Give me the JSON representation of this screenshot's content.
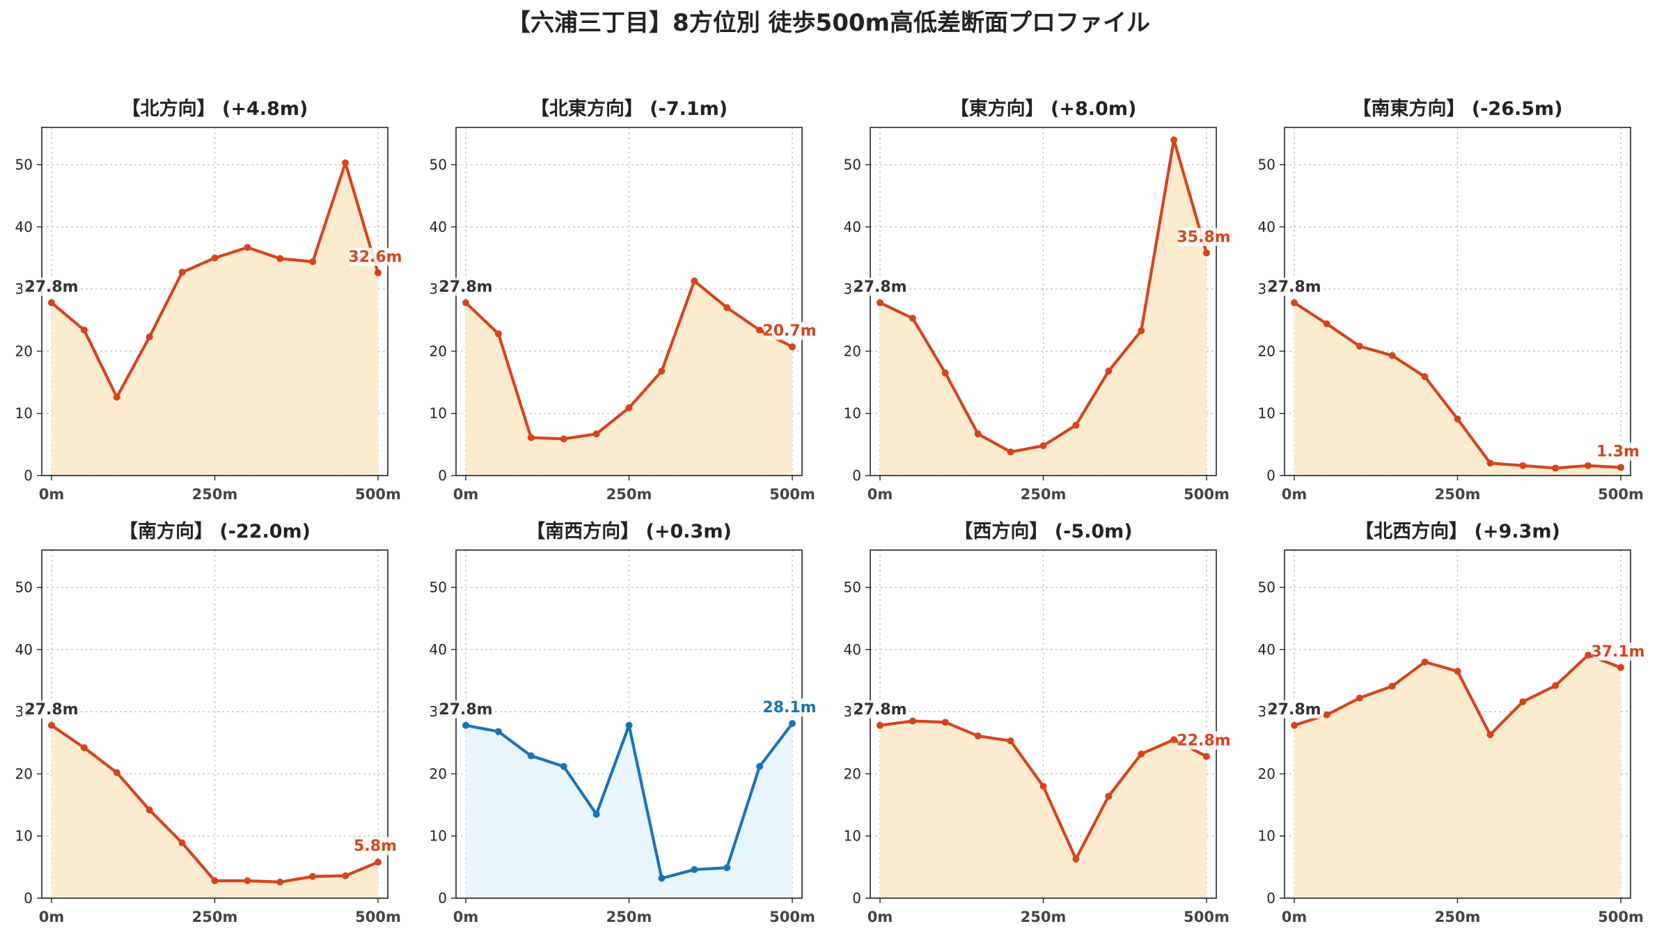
{
  "title": "【六浦三丁目】8方位別 徒歩500m高低差断面プロファイル",
  "colors": {
    "line_default": "#d5441c",
    "fill_default": "#fdebd0",
    "line_highlight": "#1a73b5",
    "fill_highlight": "#e8f5fb",
    "start_label": "#333333"
  },
  "chart_data": [
    {
      "type": "area",
      "title": "【北方向】 (+4.8m)",
      "highlight": false,
      "x": [
        0,
        50,
        100,
        150,
        200,
        250,
        300,
        350,
        400,
        450,
        500
      ],
      "values": [
        27.8,
        23.4,
        12.6,
        22.3,
        32.7,
        35.0,
        36.7,
        34.9,
        34.4,
        50.3,
        32.6
      ],
      "start_label": "27.8m",
      "end_label": "32.6m",
      "xticks": [
        "0m",
        "250m",
        "500m"
      ],
      "yticks": [
        "0",
        "10",
        "20",
        "30",
        "40",
        "50"
      ],
      "ylim": [
        0,
        56
      ],
      "grid": true
    },
    {
      "type": "area",
      "title": "【北東方向】 (-7.1m)",
      "highlight": false,
      "x": [
        0,
        50,
        100,
        150,
        200,
        250,
        300,
        350,
        400,
        450,
        500
      ],
      "values": [
        27.8,
        22.8,
        6.1,
        5.9,
        6.7,
        10.9,
        16.8,
        31.3,
        27.0,
        23.4,
        20.7
      ],
      "start_label": "27.8m",
      "end_label": "20.7m",
      "xticks": [
        "0m",
        "250m",
        "500m"
      ],
      "yticks": [
        "0",
        "10",
        "20",
        "30",
        "40",
        "50"
      ],
      "ylim": [
        0,
        56
      ],
      "grid": true
    },
    {
      "type": "area",
      "title": "【東方向】 (+8.0m)",
      "highlight": false,
      "x": [
        0,
        50,
        100,
        150,
        200,
        250,
        300,
        350,
        400,
        450,
        500
      ],
      "values": [
        27.8,
        25.3,
        16.5,
        6.7,
        3.8,
        4.8,
        8.1,
        16.8,
        23.3,
        54.0,
        35.8
      ],
      "start_label": "27.8m",
      "end_label": "35.8m",
      "xticks": [
        "0m",
        "250m",
        "500m"
      ],
      "yticks": [
        "0",
        "10",
        "20",
        "30",
        "40",
        "50"
      ],
      "ylim": [
        0,
        56
      ],
      "grid": true
    },
    {
      "type": "area",
      "title": "【南東方向】 (-26.5m)",
      "highlight": false,
      "x": [
        0,
        50,
        100,
        150,
        200,
        250,
        300,
        350,
        400,
        450,
        500
      ],
      "values": [
        27.8,
        24.4,
        20.8,
        19.3,
        15.9,
        9.1,
        2.0,
        1.6,
        1.2,
        1.6,
        1.3
      ],
      "start_label": "27.8m",
      "end_label": "1.3m",
      "xticks": [
        "0m",
        "250m",
        "500m"
      ],
      "yticks": [
        "0",
        "10",
        "20",
        "30",
        "40",
        "50"
      ],
      "ylim": [
        0,
        56
      ],
      "grid": true
    },
    {
      "type": "area",
      "title": "【南方向】 (-22.0m)",
      "highlight": false,
      "x": [
        0,
        50,
        100,
        150,
        200,
        250,
        300,
        350,
        400,
        450,
        500
      ],
      "values": [
        27.8,
        24.2,
        20.2,
        14.2,
        8.9,
        2.8,
        2.8,
        2.6,
        3.5,
        3.6,
        5.8
      ],
      "start_label": "27.8m",
      "end_label": "5.8m",
      "xticks": [
        "0m",
        "250m",
        "500m"
      ],
      "yticks": [
        "0",
        "10",
        "20",
        "30",
        "40",
        "50"
      ],
      "ylim": [
        0,
        56
      ],
      "grid": true
    },
    {
      "type": "area",
      "title": "【南西方向】 (+0.3m)",
      "highlight": true,
      "x": [
        0,
        50,
        100,
        150,
        200,
        250,
        300,
        350,
        400,
        450,
        500
      ],
      "values": [
        27.8,
        26.8,
        22.9,
        21.2,
        13.5,
        27.8,
        3.2,
        4.6,
        4.9,
        21.2,
        28.1
      ],
      "start_label": "27.8m",
      "end_label": "28.1m",
      "xticks": [
        "0m",
        "250m",
        "500m"
      ],
      "yticks": [
        "0",
        "10",
        "20",
        "30",
        "40",
        "50"
      ],
      "ylim": [
        0,
        56
      ],
      "grid": true
    },
    {
      "type": "area",
      "title": "【西方向】 (-5.0m)",
      "highlight": false,
      "x": [
        0,
        50,
        100,
        150,
        200,
        250,
        300,
        350,
        400,
        450,
        500
      ],
      "values": [
        27.8,
        28.5,
        28.3,
        26.1,
        25.3,
        18.0,
        6.3,
        16.4,
        23.2,
        25.5,
        22.8
      ],
      "start_label": "27.8m",
      "end_label": "22.8m",
      "xticks": [
        "0m",
        "250m",
        "500m"
      ],
      "yticks": [
        "0",
        "10",
        "20",
        "30",
        "40",
        "50"
      ],
      "ylim": [
        0,
        56
      ],
      "grid": true
    },
    {
      "type": "area",
      "title": "【北西方向】 (+9.3m)",
      "highlight": false,
      "x": [
        0,
        50,
        100,
        150,
        200,
        250,
        300,
        350,
        400,
        450,
        500
      ],
      "values": [
        27.8,
        29.5,
        32.2,
        34.1,
        38.0,
        36.5,
        26.3,
        31.6,
        34.2,
        39.1,
        37.1
      ],
      "start_label": "27.8m",
      "end_label": "37.1m",
      "xticks": [
        "0m",
        "250m",
        "500m"
      ],
      "yticks": [
        "0",
        "10",
        "20",
        "30",
        "40",
        "50"
      ],
      "ylim": [
        0,
        56
      ],
      "grid": true
    }
  ]
}
